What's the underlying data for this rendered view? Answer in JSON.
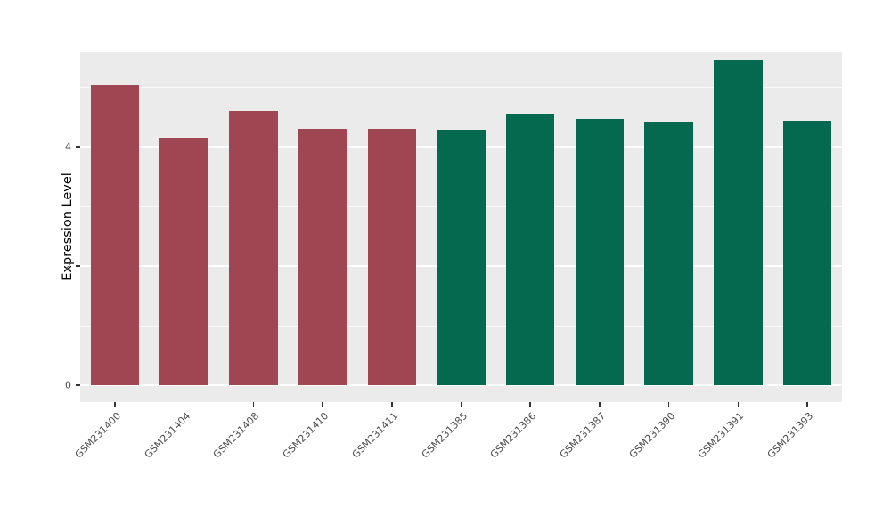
{
  "chart_data": {
    "type": "bar",
    "title": "",
    "xlabel": "",
    "ylabel": "Expression Level",
    "categories": [
      "GSM231400",
      "GSM231404",
      "GSM231408",
      "GSM231410",
      "GSM231411",
      "GSM231385",
      "GSM231386",
      "GSM231387",
      "GSM231390",
      "GSM231391",
      "GSM231393"
    ],
    "values": [
      5.05,
      4.15,
      4.6,
      4.3,
      4.3,
      4.28,
      4.55,
      4.47,
      4.42,
      5.45,
      4.43
    ],
    "groups": [
      "A",
      "A",
      "A",
      "A",
      "A",
      "B",
      "B",
      "B",
      "B",
      "B",
      "B"
    ],
    "group_colors": {
      "A": "#A04652",
      "B": "#04694E"
    },
    "ylim": [
      0,
      5.7
    ],
    "yticks": [
      0,
      2,
      4
    ],
    "minor_ticks": [
      1,
      3,
      5
    ],
    "panel_bg": "#EBEBEB",
    "grid_color": "#FFFFFF",
    "legend_position": "none",
    "x_label_angle": 45
  }
}
